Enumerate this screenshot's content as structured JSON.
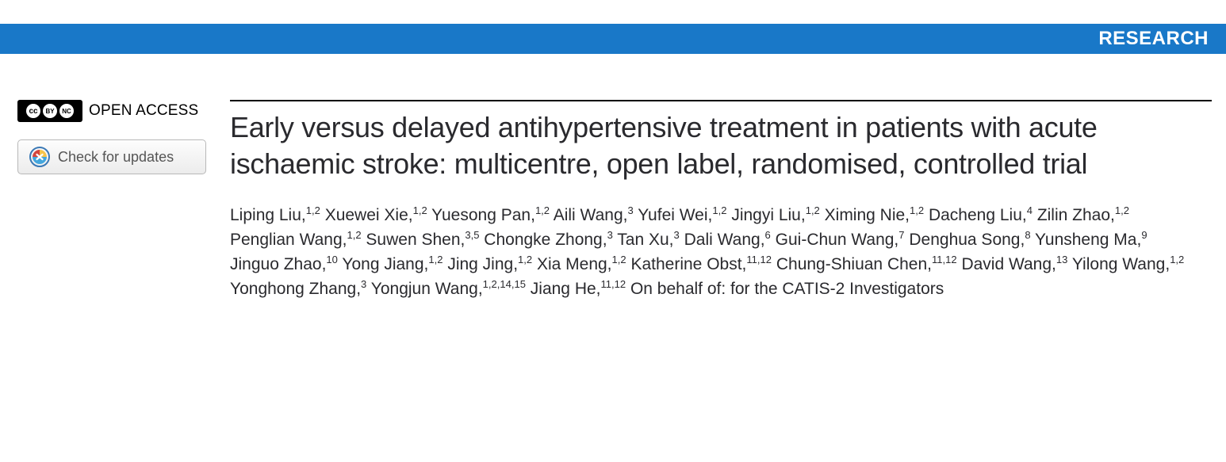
{
  "banner": {
    "label": "RESEARCH",
    "bg_color": "#1978c8",
    "text_color": "#ffffff"
  },
  "sidebar": {
    "open_access_label": "OPEN ACCESS",
    "cc_symbols": [
      "cc",
      "①",
      "$"
    ],
    "check_updates_label": "Check for updates"
  },
  "article": {
    "title": "Early versus delayed antihypertensive treatment in patients with acute ischaemic stroke: multicentre, open label, randomised, controlled trial",
    "authors": [
      {
        "name": "Liping Liu",
        "aff": "1,2"
      },
      {
        "name": "Xuewei Xie",
        "aff": "1,2"
      },
      {
        "name": "Yuesong Pan",
        "aff": "1,2"
      },
      {
        "name": "Aili Wang",
        "aff": "3"
      },
      {
        "name": "Yufei Wei",
        "aff": "1,2"
      },
      {
        "name": "Jingyi Liu",
        "aff": "1,2"
      },
      {
        "name": "Ximing Nie",
        "aff": "1,2"
      },
      {
        "name": "Dacheng Liu",
        "aff": "4"
      },
      {
        "name": "Zilin Zhao",
        "aff": "1,2"
      },
      {
        "name": "Penglian Wang",
        "aff": "1,2"
      },
      {
        "name": "Suwen Shen",
        "aff": "3,5"
      },
      {
        "name": "Chongke Zhong",
        "aff": "3"
      },
      {
        "name": "Tan Xu",
        "aff": "3"
      },
      {
        "name": "Dali Wang",
        "aff": "6"
      },
      {
        "name": "Gui-Chun Wang",
        "aff": "7"
      },
      {
        "name": "Denghua Song",
        "aff": "8"
      },
      {
        "name": "Yunsheng Ma",
        "aff": "9"
      },
      {
        "name": "Jinguo Zhao",
        "aff": "10"
      },
      {
        "name": "Yong Jiang",
        "aff": "1,2"
      },
      {
        "name": "Jing Jing",
        "aff": "1,2"
      },
      {
        "name": "Xia Meng",
        "aff": "1,2"
      },
      {
        "name": "Katherine Obst",
        "aff": "11,12"
      },
      {
        "name": "Chung-Shiuan Chen",
        "aff": "11,12"
      },
      {
        "name": "David Wang",
        "aff": "13"
      },
      {
        "name": "Yilong Wang",
        "aff": "1,2"
      },
      {
        "name": "Yonghong Zhang",
        "aff": "3"
      },
      {
        "name": "Yongjun Wang",
        "aff": "1,2,14,15"
      },
      {
        "name": "Jiang He",
        "aff": "11,12"
      }
    ],
    "on_behalf": "On behalf of: for the CATIS-2 Investigators"
  },
  "colors": {
    "rule": "#000000",
    "title_color": "#2a2a2e",
    "author_color": "#2a2a2e"
  }
}
